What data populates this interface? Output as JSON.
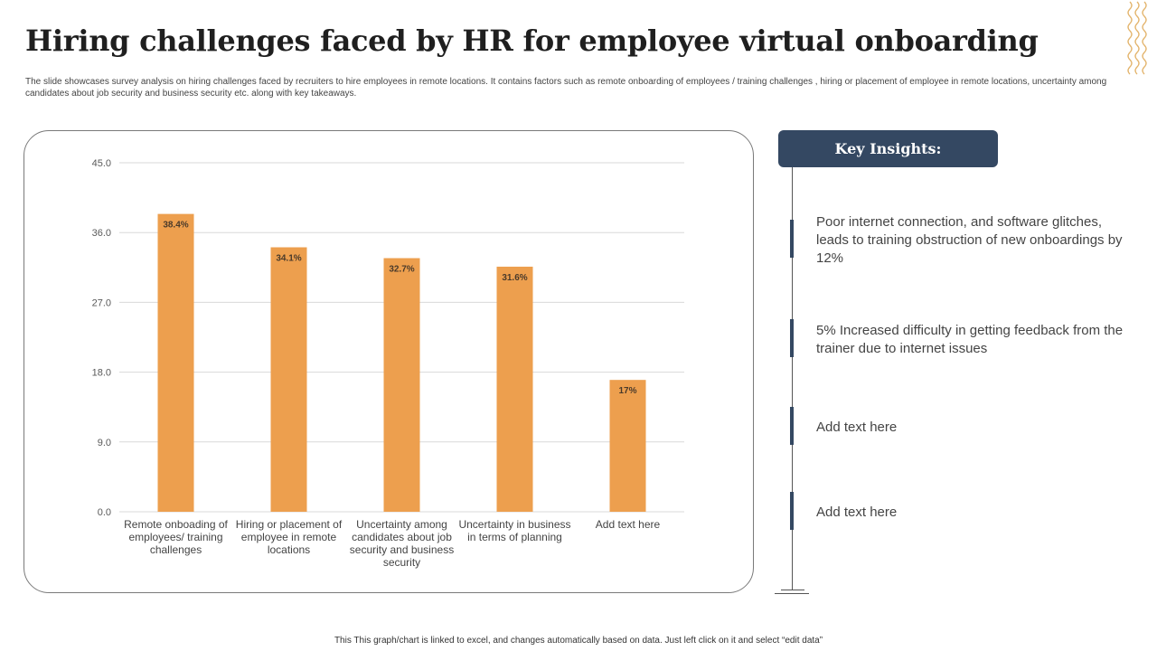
{
  "slide": {
    "title": "Hiring challenges faced by HR for employee virtual onboarding",
    "subtitle": "The slide showcases survey analysis on hiring challenges faced by recruiters to hire employees in remote locations. It contains factors such as remote onboarding of employees / training challenges , hiring or placement of employee in remote locations, uncertainty among candidates about job security and business security etc. along with key takeaways.",
    "footer": "This This graph/chart is linked to excel, and changes automatically based on data. Just left click on it and select “edit data”"
  },
  "colors": {
    "bar": "#ED9F4E",
    "header": "#344862",
    "grid": "#D9D9D9"
  },
  "chart_data": {
    "type": "bar",
    "categories": [
      [
        "Remote onboading of",
        "employees/ training",
        "challenges"
      ],
      [
        "Hiring or placement of",
        "employee in remote",
        "locations"
      ],
      [
        "Uncertainty among",
        "candidates about job",
        "security and business",
        "security"
      ],
      [
        "Uncertainty in business",
        "in terms of planning"
      ],
      [
        "Add text here"
      ]
    ],
    "values": [
      38.4,
      34.1,
      32.7,
      31.6,
      17
    ],
    "data_labels": [
      "38.4%",
      "34.1%",
      "32.7%",
      "31.6%",
      "17%"
    ],
    "yticks": [
      "0.0",
      "9.0",
      "18.0",
      "27.0",
      "36.0",
      "45.0"
    ],
    "ylim": [
      0,
      45
    ],
    "grid": true
  },
  "insights": {
    "header": "Key Insights:",
    "items": [
      "Poor internet connection, and software glitches, leads to training obstruction of new onboardings by 12%",
      "5% Increased difficulty in getting feedback from the trainer due to internet issues",
      "Add text here",
      "Add text here"
    ]
  }
}
